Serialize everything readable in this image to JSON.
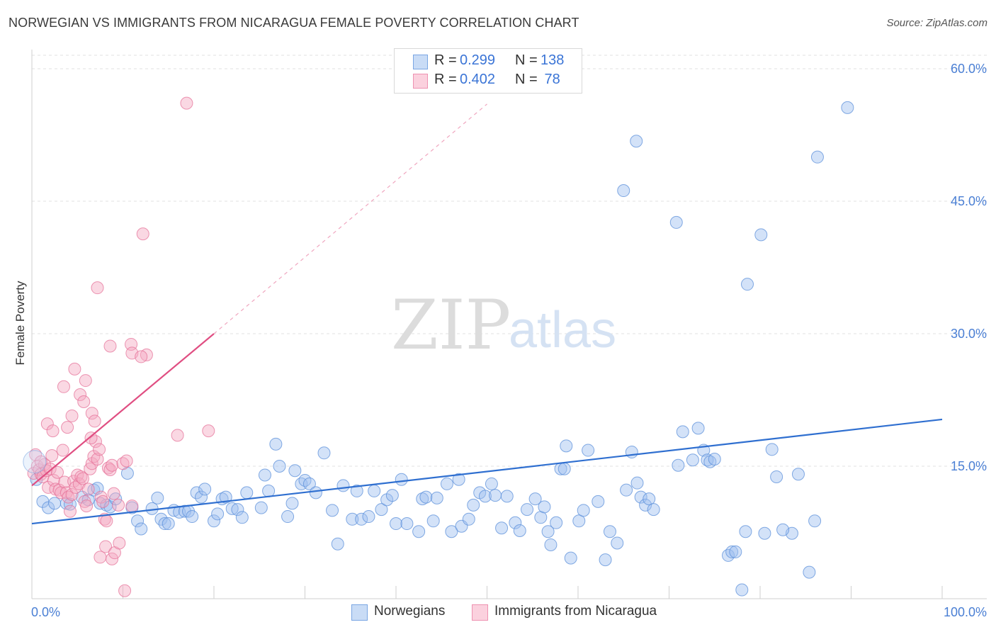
{
  "title": "NORWEGIAN VS IMMIGRANTS FROM NICARAGUA FEMALE POVERTY CORRELATION CHART",
  "source": "Source: ZipAtlas.com",
  "watermark": {
    "zip": "ZIP",
    "atlas": "atlas"
  },
  "legend_top": {
    "rows": [
      {
        "r_label": "R = ",
        "r_value": "0.299",
        "n_label": "N = ",
        "n_value": "138",
        "color": "#9dbff0"
      },
      {
        "r_label": "R = ",
        "r_value": "0.402",
        "n_label": "N = ",
        "n_value": " 78",
        "color": "#f4a9c0"
      }
    ]
  },
  "legend_bottom": [
    {
      "label": "Norwegians",
      "color": "#9dbff0"
    },
    {
      "label": "Immigrants from Nicaragua",
      "color": "#f4a9c0"
    }
  ],
  "chart_data": {
    "type": "scatter",
    "title": "NORWEGIAN VS IMMIGRANTS FROM NICARAGUA FEMALE POVERTY CORRELATION CHART",
    "xlabel": "",
    "ylabel": "Female Poverty",
    "xlim": [
      0,
      100
    ],
    "ylim": [
      0,
      65
    ],
    "x_tick_labels": [
      "0.0%",
      "100.0%"
    ],
    "y_ticks": [
      15,
      30,
      45,
      60
    ],
    "y_tick_labels": [
      "15.0%",
      "30.0%",
      "45.0%",
      "60.0%"
    ],
    "grid": true,
    "legend_position": "top-center",
    "series": [
      {
        "name": "Norwegians",
        "color": "#9dbff0",
        "stroke": "#5b8fd9",
        "trend": {
          "x0": 0,
          "y0": 8.5,
          "x1": 100,
          "y1": 20.3,
          "color": "#2f6fd0"
        },
        "points": [
          [
            0.5,
            13.5
          ],
          [
            1.2,
            11.0
          ],
          [
            1.8,
            10.3
          ],
          [
            2.5,
            10.8
          ],
          [
            3.8,
            10.8
          ],
          [
            4.2,
            10.7
          ],
          [
            5.5,
            11.5
          ],
          [
            6.2,
            11.2
          ],
          [
            6.8,
            12.3
          ],
          [
            7.2,
            12.5
          ],
          [
            7.5,
            10.8
          ],
          [
            8.2,
            10.6
          ],
          [
            8.6,
            10.4
          ],
          [
            9.2,
            11.3
          ],
          [
            10.5,
            14.2
          ],
          [
            11.0,
            10.3
          ],
          [
            11.6,
            8.8
          ],
          [
            12.0,
            7.9
          ],
          [
            13.2,
            10.2
          ],
          [
            13.8,
            11.4
          ],
          [
            14.2,
            9.0
          ],
          [
            14.6,
            8.5
          ],
          [
            15.0,
            8.5
          ],
          [
            15.6,
            10.0
          ],
          [
            16.2,
            9.8
          ],
          [
            16.8,
            9.9
          ],
          [
            17.2,
            9.9
          ],
          [
            17.6,
            9.3
          ],
          [
            18.1,
            12.0
          ],
          [
            18.6,
            11.5
          ],
          [
            19.0,
            12.4
          ],
          [
            20.0,
            8.8
          ],
          [
            20.4,
            9.6
          ],
          [
            20.9,
            11.3
          ],
          [
            21.3,
            11.5
          ],
          [
            22.0,
            10.2
          ],
          [
            22.6,
            10.1
          ],
          [
            23.1,
            9.2
          ],
          [
            23.6,
            12.0
          ],
          [
            25.2,
            10.3
          ],
          [
            25.6,
            14.0
          ],
          [
            26.0,
            12.2
          ],
          [
            26.8,
            17.5
          ],
          [
            27.2,
            15.0
          ],
          [
            28.1,
            9.3
          ],
          [
            28.6,
            10.8
          ],
          [
            28.9,
            14.5
          ],
          [
            29.6,
            13.0
          ],
          [
            30.0,
            13.4
          ],
          [
            30.5,
            13.0
          ],
          [
            31.2,
            12.0
          ],
          [
            32.1,
            16.5
          ],
          [
            33.0,
            10.0
          ],
          [
            33.6,
            6.2
          ],
          [
            34.2,
            12.8
          ],
          [
            35.2,
            9.0
          ],
          [
            35.7,
            12.2
          ],
          [
            36.2,
            9.0
          ],
          [
            37.0,
            9.3
          ],
          [
            37.6,
            12.2
          ],
          [
            38.4,
            10.1
          ],
          [
            39.0,
            11.2
          ],
          [
            39.6,
            11.7
          ],
          [
            40.0,
            8.5
          ],
          [
            40.6,
            13.5
          ],
          [
            41.2,
            8.5
          ],
          [
            42.5,
            7.6
          ],
          [
            42.9,
            11.3
          ],
          [
            43.3,
            11.5
          ],
          [
            44.1,
            8.8
          ],
          [
            44.5,
            11.4
          ],
          [
            45.6,
            13.0
          ],
          [
            46.1,
            7.6
          ],
          [
            46.9,
            13.5
          ],
          [
            47.2,
            8.2
          ],
          [
            48.0,
            9.0
          ],
          [
            48.5,
            10.6
          ],
          [
            49.2,
            12.0
          ],
          [
            49.8,
            11.6
          ],
          [
            50.5,
            13.0
          ],
          [
            50.9,
            11.7
          ],
          [
            51.6,
            8.0
          ],
          [
            52.2,
            11.6
          ],
          [
            53.1,
            8.6
          ],
          [
            53.6,
            7.7
          ],
          [
            54.4,
            10.1
          ],
          [
            55.3,
            11.3
          ],
          [
            55.9,
            9.2
          ],
          [
            56.3,
            10.4
          ],
          [
            56.7,
            7.6
          ],
          [
            57.0,
            6.1
          ],
          [
            57.6,
            8.6
          ],
          [
            58.1,
            14.7
          ],
          [
            58.5,
            14.7
          ],
          [
            58.7,
            17.3
          ],
          [
            59.2,
            4.6
          ],
          [
            60.1,
            8.8
          ],
          [
            60.6,
            10.0
          ],
          [
            61.1,
            16.8
          ],
          [
            62.2,
            11.0
          ],
          [
            63.0,
            4.4
          ],
          [
            63.5,
            7.6
          ],
          [
            64.3,
            6.3
          ],
          [
            65.3,
            12.3
          ],
          [
            65.9,
            16.6
          ],
          [
            66.5,
            13.1
          ],
          [
            66.9,
            11.5
          ],
          [
            67.4,
            10.6
          ],
          [
            67.8,
            11.3
          ],
          [
            68.3,
            10.1
          ],
          [
            71.0,
            15.1
          ],
          [
            71.5,
            18.9
          ],
          [
            72.6,
            15.7
          ],
          [
            73.2,
            19.3
          ],
          [
            73.8,
            16.8
          ],
          [
            74.2,
            15.7
          ],
          [
            74.5,
            15.5
          ],
          [
            76.5,
            4.9
          ],
          [
            76.9,
            5.3
          ],
          [
            77.3,
            5.3
          ],
          [
            78.4,
            7.6
          ],
          [
            80.5,
            7.4
          ],
          [
            81.3,
            16.9
          ],
          [
            81.8,
            13.8
          ],
          [
            83.5,
            7.4
          ],
          [
            84.2,
            14.1
          ],
          [
            85.4,
            3.0
          ],
          [
            86.0,
            8.8
          ],
          [
            78.6,
            35.6
          ],
          [
            80.1,
            41.2
          ],
          [
            70.8,
            42.6
          ],
          [
            65.0,
            46.2
          ],
          [
            66.4,
            51.8
          ],
          [
            86.3,
            50.0
          ],
          [
            89.6,
            55.6
          ],
          [
            78.0,
            1.0
          ],
          [
            82.5,
            7.8
          ],
          [
            75.0,
            15.8
          ]
        ]
      },
      {
        "name": "Immigrants from Nicaragua",
        "color": "#f4a9c0",
        "stroke": "#e5739a",
        "trend": {
          "x0": 0,
          "y0": 12.8,
          "x1": 20,
          "y1": 30.0,
          "dash_x1": 50,
          "dash_y1": 56.0,
          "color": "#e04e82"
        },
        "points": [
          [
            0.2,
            14.2
          ],
          [
            0.4,
            16.3
          ],
          [
            0.6,
            15.0
          ],
          [
            0.8,
            14.6
          ],
          [
            1.0,
            14.1
          ],
          [
            1.2,
            13.8
          ],
          [
            1.4,
            15.2
          ],
          [
            1.6,
            14.5
          ],
          [
            1.8,
            12.6
          ],
          [
            2.0,
            14.7
          ],
          [
            2.2,
            16.2
          ],
          [
            2.4,
            13.4
          ],
          [
            2.6,
            12.4
          ],
          [
            2.8,
            14.3
          ],
          [
            3.0,
            12.3
          ],
          [
            3.2,
            12.0
          ],
          [
            3.4,
            16.8
          ],
          [
            3.6,
            13.2
          ],
          [
            3.8,
            12.0
          ],
          [
            4.0,
            11.5
          ],
          [
            4.2,
            9.9
          ],
          [
            4.4,
            11.8
          ],
          [
            4.6,
            13.3
          ],
          [
            4.8,
            12.6
          ],
          [
            5.0,
            14.0
          ],
          [
            5.2,
            13.0
          ],
          [
            5.4,
            13.8
          ],
          [
            5.6,
            13.6
          ],
          [
            5.8,
            11.0
          ],
          [
            6.0,
            10.5
          ],
          [
            6.2,
            12.4
          ],
          [
            6.4,
            14.7
          ],
          [
            6.6,
            15.3
          ],
          [
            6.8,
            16.1
          ],
          [
            7.0,
            17.8
          ],
          [
            7.2,
            15.8
          ],
          [
            7.4,
            16.9
          ],
          [
            7.6,
            11.5
          ],
          [
            7.8,
            11.0
          ],
          [
            8.0,
            9.0
          ],
          [
            8.2,
            8.8
          ],
          [
            8.4,
            14.8
          ],
          [
            8.6,
            14.6
          ],
          [
            8.8,
            15.1
          ],
          [
            9.0,
            11.9
          ],
          [
            9.5,
            10.6
          ],
          [
            10.0,
            15.3
          ],
          [
            10.4,
            15.6
          ],
          [
            11.0,
            10.5
          ],
          [
            1.7,
            19.8
          ],
          [
            2.3,
            19.0
          ],
          [
            3.5,
            24.0
          ],
          [
            3.9,
            19.4
          ],
          [
            4.4,
            20.7
          ],
          [
            4.7,
            26.0
          ],
          [
            5.3,
            23.1
          ],
          [
            5.9,
            24.7
          ],
          [
            5.7,
            22.3
          ],
          [
            6.6,
            21.0
          ],
          [
            6.9,
            20.1
          ],
          [
            6.5,
            18.2
          ],
          [
            8.6,
            28.6
          ],
          [
            10.9,
            28.8
          ],
          [
            11.0,
            27.8
          ],
          [
            12.6,
            27.6
          ],
          [
            12.0,
            27.4
          ],
          [
            16.0,
            18.5
          ],
          [
            19.4,
            19.0
          ],
          [
            7.2,
            35.2
          ],
          [
            12.2,
            41.3
          ],
          [
            17.0,
            56.1
          ],
          [
            7.5,
            4.7
          ],
          [
            8.1,
            5.9
          ],
          [
            8.8,
            4.5
          ],
          [
            9.1,
            5.2
          ],
          [
            9.6,
            6.3
          ],
          [
            10.2,
            0.9
          ],
          [
            1.0,
            15.5
          ]
        ]
      }
    ]
  }
}
